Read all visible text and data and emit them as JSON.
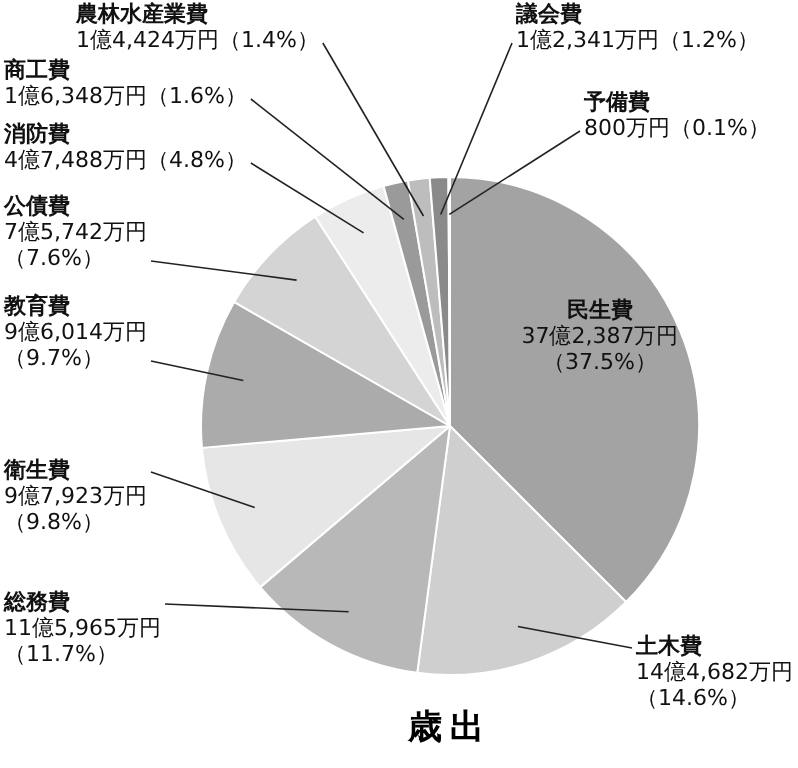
{
  "chart_data": {
    "type": "pie",
    "title": "歳出",
    "categories": [
      "民生費",
      "土木費",
      "総務費",
      "衛生費",
      "教育費",
      "公債費",
      "消防費",
      "商工費",
      "農林水産業費",
      "議会費",
      "予備費"
    ],
    "values": [
      37.5,
      14.6,
      11.7,
      9.8,
      9.7,
      7.6,
      4.8,
      1.6,
      1.4,
      1.2,
      0.1
    ],
    "value_labels": [
      "37億2,387万円（37.5%）",
      "14億4,682万円（14.6%）",
      "11億5,965万円（11.7%）",
      "9億7,923万円（9.8%）",
      "9億6,014万円（9.7%）",
      "7億5,742万円（7.6%）",
      "4億7,488万円（4.8%）",
      "1億6,348万円（1.6%）",
      "1億4,424万円（1.4%）",
      "1億2,341万円（1.2%）",
      "800万円（0.1%）"
    ],
    "colors": [
      "#a3a3a3",
      "#cfcfcf",
      "#b8b8b8",
      "#e6e6e6",
      "#ababab",
      "#d4d4d4",
      "#ececec",
      "#9a9a9a",
      "#bdbdbd",
      "#8a8a8a",
      "#d8d8d8"
    ]
  }
}
